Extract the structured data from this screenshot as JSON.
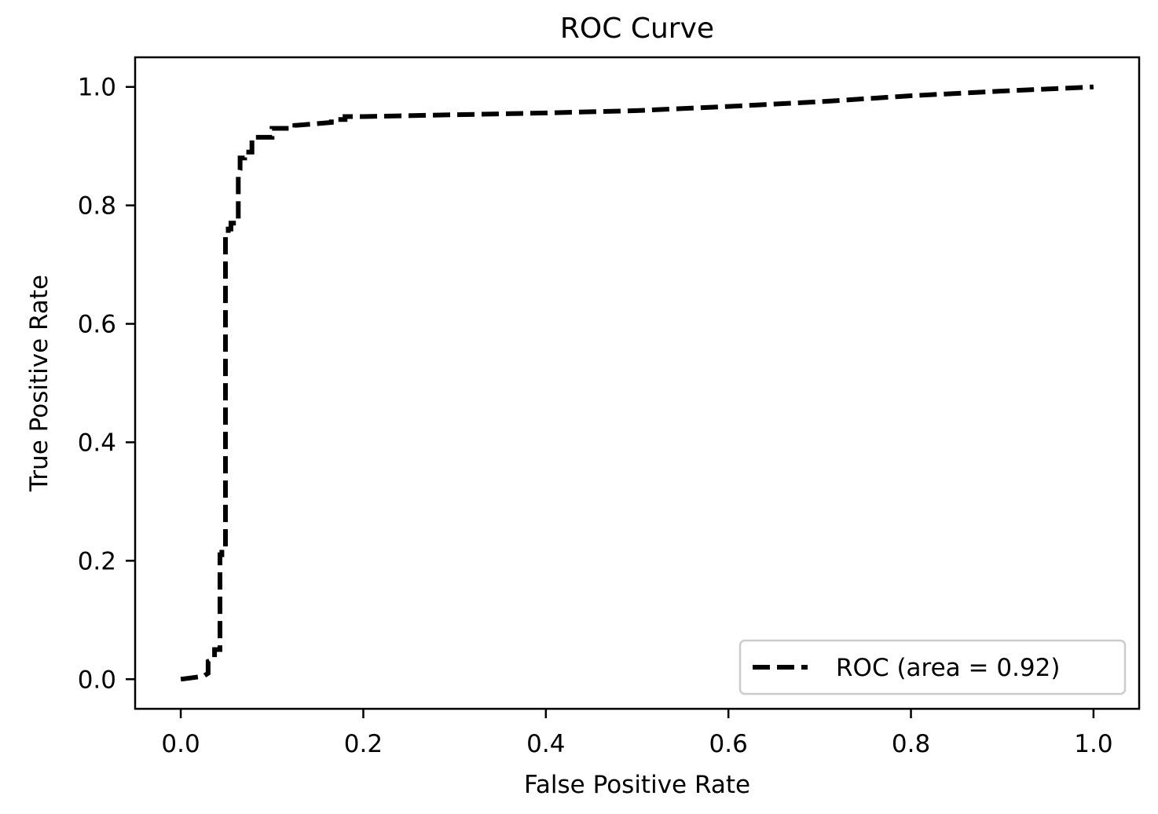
{
  "chart_data": {
    "type": "line",
    "title": "ROC Curve",
    "xlabel": "False Positive Rate",
    "ylabel": "True Positive Rate",
    "xlim": [
      -0.05,
      1.05
    ],
    "ylim": [
      -0.05,
      1.05
    ],
    "xticks": [
      0.0,
      0.2,
      0.4,
      0.6,
      0.8,
      1.0
    ],
    "xtick_labels": [
      "0.0",
      "0.2",
      "0.4",
      "0.6",
      "0.8",
      "1.0"
    ],
    "yticks": [
      0.0,
      0.2,
      0.4,
      0.6,
      0.8,
      1.0
    ],
    "ytick_labels": [
      "0.0",
      "0.2",
      "0.4",
      "0.6",
      "0.8",
      "1.0"
    ],
    "grid": false,
    "legend": {
      "position": "lower-right",
      "entries": [
        "ROC (area = 0.92)"
      ]
    },
    "series": [
      {
        "name": "ROC (area = 0.92)",
        "style": "dashed",
        "color": "#000000",
        "x": [
          0.0,
          0.01,
          0.025,
          0.03,
          0.03,
          0.037,
          0.037,
          0.043,
          0.043,
          0.045,
          0.045,
          0.049,
          0.049,
          0.052,
          0.052,
          0.055,
          0.055,
          0.06,
          0.063,
          0.063,
          0.065,
          0.065,
          0.07,
          0.07,
          0.078,
          0.078,
          0.1,
          0.1,
          0.125,
          0.125,
          0.165,
          0.165,
          0.18,
          0.18,
          0.2,
          0.3,
          0.4,
          0.45,
          0.5,
          0.6,
          0.7,
          0.8,
          0.9,
          1.0
        ],
        "y": [
          0.0,
          0.002,
          0.005,
          0.01,
          0.03,
          0.035,
          0.05,
          0.05,
          0.21,
          0.21,
          0.22,
          0.22,
          0.75,
          0.75,
          0.76,
          0.76,
          0.77,
          0.77,
          0.77,
          0.85,
          0.86,
          0.88,
          0.88,
          0.89,
          0.89,
          0.915,
          0.915,
          0.93,
          0.93,
          0.935,
          0.94,
          0.945,
          0.945,
          0.95,
          0.95,
          0.953,
          0.956,
          0.958,
          0.96,
          0.967,
          0.975,
          0.985,
          0.993,
          1.0
        ]
      }
    ]
  }
}
